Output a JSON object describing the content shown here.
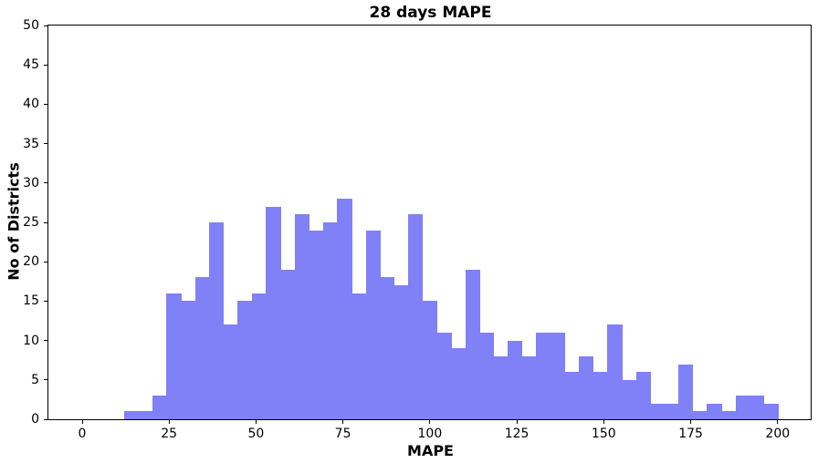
{
  "figure": {
    "background": "#ffffff",
    "text_color": "#000000",
    "spine_color": "#000000"
  },
  "chart_data": {
    "type": "bar",
    "subtype": "histogram",
    "title": "28 days MAPE",
    "xlabel": "MAPE",
    "ylabel": "No of Districts",
    "bar_color": "#8080f7",
    "bin_start": 12.0,
    "bin_width": 4.09,
    "counts": [
      1,
      1,
      3,
      16,
      15,
      18,
      25,
      12,
      15,
      16,
      27,
      19,
      26,
      24,
      25,
      28,
      16,
      24,
      18,
      17,
      26,
      15,
      11,
      9,
      19,
      11,
      8,
      10,
      8,
      11,
      11,
      6,
      8,
      6,
      12,
      5,
      6,
      2,
      2,
      7,
      1,
      2,
      1,
      3,
      3,
      2
    ],
    "x_ticks": [
      0,
      25,
      50,
      75,
      100,
      125,
      150,
      175,
      200
    ],
    "y_ticks": [
      0,
      5,
      10,
      15,
      20,
      25,
      30,
      35,
      40,
      45,
      50
    ],
    "xlim": [
      -9.7,
      209.5
    ],
    "ylim": [
      0,
      50
    ],
    "grid": false,
    "legend_visible": false
  }
}
